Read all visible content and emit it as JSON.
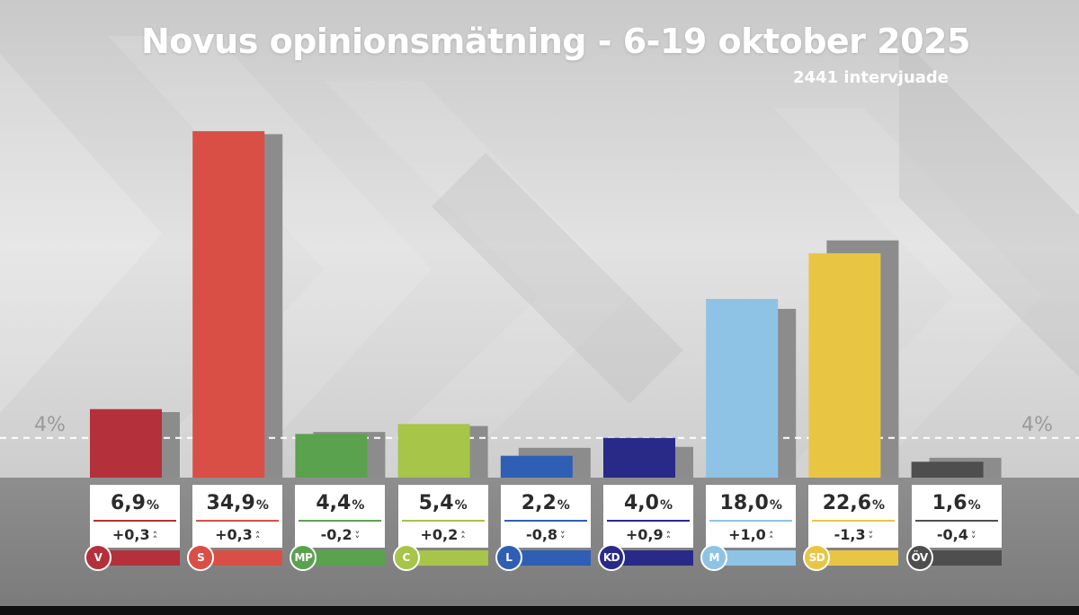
{
  "chart_data": {
    "type": "bar",
    "title": "Novus opinionsmätning - 6-19 oktober 2025",
    "subtitle": "2441 intervjuade",
    "threshold": {
      "value": 4,
      "label": "4%"
    },
    "ylim": [
      0,
      35
    ],
    "categories": [
      "V",
      "S",
      "MP",
      "C",
      "L",
      "KD",
      "M",
      "SD",
      "ÖV"
    ],
    "series": [
      {
        "values": [
          6.9,
          34.9,
          4.4,
          5.4,
          2.2,
          4.0,
          18.0,
          22.6,
          1.6
        ]
      },
      {
        "values": [
          6.6,
          34.6,
          4.6,
          5.2,
          3.0,
          3.1,
          17.0,
          23.9,
          2.0
        ]
      }
    ],
    "value_labels": [
      "6,9",
      "34,9",
      "4,4",
      "5,4",
      "2,2",
      "4,0",
      "18,0",
      "22,6",
      "1,6"
    ],
    "unit": "%",
    "changes": [
      "+0,3",
      "+0,3",
      "-0,2",
      "+0,2",
      "-0,8",
      "+0,9",
      "+1,0",
      "-1,3",
      "-0,4"
    ],
    "change_direction": [
      "up",
      "up",
      "down",
      "up",
      "down",
      "up",
      "up",
      "down",
      "down"
    ],
    "colors": [
      "#b4303a",
      "#d94f45",
      "#5aa24e",
      "#a6c549",
      "#2f5fb5",
      "#292a88",
      "#8ec3e6",
      "#e8c644",
      "#4e4e4e"
    ],
    "previous_color": "#8c8c8c",
    "grid": false,
    "legend": "none"
  }
}
